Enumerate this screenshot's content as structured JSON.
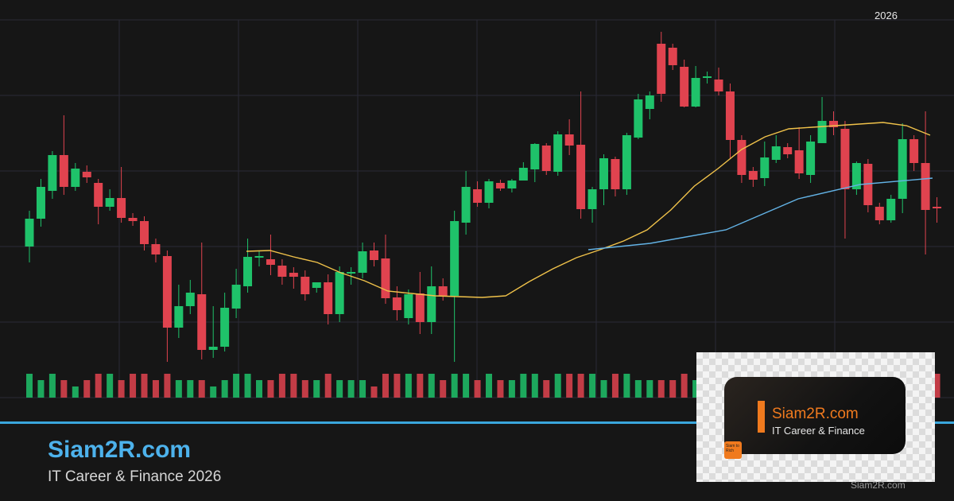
{
  "brand": {
    "title": "Siam2R.com",
    "subtitle": "IT Career & Finance 2026",
    "year_label": "2026",
    "watermark": "Siam2R.com"
  },
  "thumbnail": {
    "title": "Siam2R.com",
    "subtitle": "IT Career & Finance",
    "logo_text": "Siam to Rich"
  },
  "colors": {
    "background": "#161616",
    "up": "#1fc26a",
    "down": "#e0434f",
    "ma_short": "#f0c24a",
    "ma_long": "#63b3e6",
    "accent": "#3aa6dc",
    "grid": "#2a2a36"
  },
  "chart_data": {
    "type": "candlestick",
    "title": "",
    "xlabel": "",
    "ylabel": "",
    "grid": true,
    "ylim": [
      0,
      500
    ],
    "candles": [
      {
        "o": 190,
        "c": 225,
        "h": 235,
        "l": 170
      },
      {
        "o": 225,
        "c": 265,
        "h": 275,
        "l": 215
      },
      {
        "o": 260,
        "c": 305,
        "h": 310,
        "l": 250
      },
      {
        "o": 305,
        "c": 265,
        "h": 355,
        "l": 255
      },
      {
        "o": 265,
        "c": 288,
        "h": 295,
        "l": 260
      },
      {
        "o": 284,
        "c": 277,
        "h": 292,
        "l": 270
      },
      {
        "o": 270,
        "c": 240,
        "h": 275,
        "l": 218
      },
      {
        "o": 240,
        "c": 251,
        "h": 262,
        "l": 235
      },
      {
        "o": 251,
        "c": 226,
        "h": 290,
        "l": 220
      },
      {
        "o": 226,
        "c": 222,
        "h": 232,
        "l": 216
      },
      {
        "o": 222,
        "c": 193,
        "h": 228,
        "l": 185
      },
      {
        "o": 193,
        "c": 180,
        "h": 200,
        "l": 170
      },
      {
        "o": 178,
        "c": 88,
        "h": 185,
        "l": 45
      },
      {
        "o": 88,
        "c": 115,
        "h": 142,
        "l": 75
      },
      {
        "o": 115,
        "c": 132,
        "h": 148,
        "l": 105
      },
      {
        "o": 130,
        "c": 60,
        "h": 195,
        "l": 48
      },
      {
        "o": 60,
        "c": 64,
        "h": 115,
        "l": 50
      },
      {
        "o": 64,
        "c": 113,
        "h": 132,
        "l": 58
      },
      {
        "o": 112,
        "c": 142,
        "h": 162,
        "l": 100
      },
      {
        "o": 140,
        "c": 177,
        "h": 200,
        "l": 132
      },
      {
        "o": 177,
        "c": 178,
        "h": 185,
        "l": 165
      },
      {
        "o": 174,
        "c": 167,
        "h": 205,
        "l": 154
      },
      {
        "o": 166,
        "c": 152,
        "h": 174,
        "l": 142
      },
      {
        "o": 157,
        "c": 152,
        "h": 164,
        "l": 137
      },
      {
        "o": 152,
        "c": 130,
        "h": 160,
        "l": 122
      },
      {
        "o": 138,
        "c": 145,
        "h": 145,
        "l": 132
      },
      {
        "o": 145,
        "c": 105,
        "h": 155,
        "l": 92
      },
      {
        "o": 105,
        "c": 158,
        "h": 165,
        "l": 95
      },
      {
        "o": 158,
        "c": 158,
        "h": 164,
        "l": 142
      },
      {
        "o": 157,
        "c": 184,
        "h": 195,
        "l": 150
      },
      {
        "o": 185,
        "c": 173,
        "h": 195,
        "l": 165
      },
      {
        "o": 175,
        "c": 125,
        "h": 205,
        "l": 118
      },
      {
        "o": 126,
        "c": 110,
        "h": 140,
        "l": 97
      },
      {
        "o": 100,
        "c": 130,
        "h": 136,
        "l": 92
      },
      {
        "o": 131,
        "c": 95,
        "h": 158,
        "l": 80
      },
      {
        "o": 95,
        "c": 140,
        "h": 165,
        "l": 80
      },
      {
        "o": 140,
        "c": 128,
        "h": 150,
        "l": 122
      },
      {
        "o": 128,
        "c": 222,
        "h": 235,
        "l": 45
      },
      {
        "o": 220,
        "c": 265,
        "h": 285,
        "l": 205
      },
      {
        "o": 262,
        "c": 245,
        "h": 272,
        "l": 240
      },
      {
        "o": 245,
        "c": 272,
        "h": 275,
        "l": 238
      },
      {
        "o": 270,
        "c": 263,
        "h": 274,
        "l": 260
      },
      {
        "o": 263,
        "c": 273,
        "h": 275,
        "l": 258
      },
      {
        "o": 273,
        "c": 289,
        "h": 296,
        "l": 273
      },
      {
        "o": 287,
        "c": 319,
        "h": 320,
        "l": 271
      },
      {
        "o": 317,
        "c": 285,
        "h": 320,
        "l": 280
      },
      {
        "o": 284,
        "c": 331,
        "h": 335,
        "l": 279
      },
      {
        "o": 331,
        "c": 317,
        "h": 350,
        "l": 305
      },
      {
        "o": 318,
        "c": 237,
        "h": 385,
        "l": 225
      },
      {
        "o": 237,
        "c": 262,
        "h": 265,
        "l": 220
      },
      {
        "o": 262,
        "c": 301,
        "h": 306,
        "l": 242
      },
      {
        "o": 300,
        "c": 262,
        "h": 303,
        "l": 253
      },
      {
        "o": 262,
        "c": 330,
        "h": 333,
        "l": 255
      },
      {
        "o": 327,
        "c": 375,
        "h": 382,
        "l": 325
      },
      {
        "o": 363,
        "c": 380,
        "h": 385,
        "l": 350
      },
      {
        "o": 445,
        "c": 382,
        "h": 460,
        "l": 372
      },
      {
        "o": 440,
        "c": 418,
        "h": 445,
        "l": 412
      },
      {
        "o": 416,
        "c": 366,
        "h": 425,
        "l": 365
      },
      {
        "o": 366,
        "c": 402,
        "h": 417,
        "l": 365
      },
      {
        "o": 402,
        "c": 404,
        "h": 410,
        "l": 395
      },
      {
        "o": 400,
        "c": 385,
        "h": 415,
        "l": 380
      },
      {
        "o": 385,
        "c": 324,
        "h": 395,
        "l": 300
      },
      {
        "o": 324,
        "c": 280,
        "h": 330,
        "l": 270
      },
      {
        "o": 285,
        "c": 274,
        "h": 290,
        "l": 265
      },
      {
        "o": 276,
        "c": 302,
        "h": 322,
        "l": 266
      },
      {
        "o": 299,
        "c": 316,
        "h": 330,
        "l": 295
      },
      {
        "o": 315,
        "c": 306,
        "h": 320,
        "l": 301
      },
      {
        "o": 311,
        "c": 282,
        "h": 340,
        "l": 275
      },
      {
        "o": 280,
        "c": 322,
        "h": 330,
        "l": 270
      },
      {
        "o": 320,
        "c": 348,
        "h": 378,
        "l": 320
      },
      {
        "o": 348,
        "c": 340,
        "h": 360,
        "l": 330
      },
      {
        "o": 338,
        "c": 262,
        "h": 348,
        "l": 200
      },
      {
        "o": 262,
        "c": 295,
        "h": 297,
        "l": 255
      },
      {
        "o": 294,
        "c": 242,
        "h": 300,
        "l": 233
      },
      {
        "o": 240,
        "c": 223,
        "h": 245,
        "l": 218
      },
      {
        "o": 223,
        "c": 250,
        "h": 255,
        "l": 220
      },
      {
        "o": 250,
        "c": 325,
        "h": 345,
        "l": 232
      },
      {
        "o": 325,
        "c": 295,
        "h": 330,
        "l": 285
      },
      {
        "o": 295,
        "c": 236,
        "h": 360,
        "l": 180
      },
      {
        "o": 240,
        "c": 238,
        "h": 252,
        "l": 220
      }
    ],
    "volume": [
      3,
      2,
      3,
      2,
      1,
      2,
      3,
      3,
      2,
      3,
      3,
      2,
      3,
      2,
      2,
      2,
      1,
      2,
      3,
      3,
      2,
      2,
      3,
      3,
      2,
      2,
      3,
      2,
      2,
      2,
      1,
      3,
      3,
      3,
      3,
      3,
      2,
      3,
      3,
      2,
      3,
      2,
      2,
      3,
      3,
      2,
      3,
      3,
      3,
      3,
      2,
      3,
      3,
      2,
      2,
      2,
      2,
      3,
      2,
      3,
      2,
      2,
      3,
      3,
      2,
      3,
      2,
      3,
      2,
      3,
      3,
      2,
      3,
      2,
      3,
      2,
      3,
      2,
      3,
      3
    ],
    "ma_short": [
      [
        0,
        184
      ],
      [
        1,
        185
      ],
      [
        2,
        177
      ],
      [
        3,
        170
      ],
      [
        4,
        157
      ],
      [
        5,
        147
      ],
      [
        6,
        134
      ],
      [
        7,
        131
      ],
      [
        8,
        128
      ],
      [
        9,
        127
      ],
      [
        10,
        126
      ],
      [
        11,
        128
      ],
      [
        12,
        146
      ],
      [
        13,
        162
      ],
      [
        14,
        176
      ],
      [
        15,
        186
      ],
      [
        16,
        197
      ],
      [
        17,
        211
      ],
      [
        18,
        236
      ],
      [
        19,
        266
      ],
      [
        20,
        288
      ],
      [
        21,
        312
      ],
      [
        22,
        328
      ],
      [
        23,
        338
      ],
      [
        24,
        340
      ],
      [
        25,
        342
      ],
      [
        26,
        344
      ],
      [
        27,
        346
      ],
      [
        28,
        342
      ],
      [
        29,
        330
      ]
    ],
    "ma_short_start_index": 48,
    "ma_long": [
      [
        0,
        186
      ],
      [
        0.18,
        194
      ],
      [
        0.4,
        211
      ],
      [
        0.61,
        250
      ],
      [
        0.79,
        268
      ],
      [
        1,
        276
      ]
    ]
  }
}
